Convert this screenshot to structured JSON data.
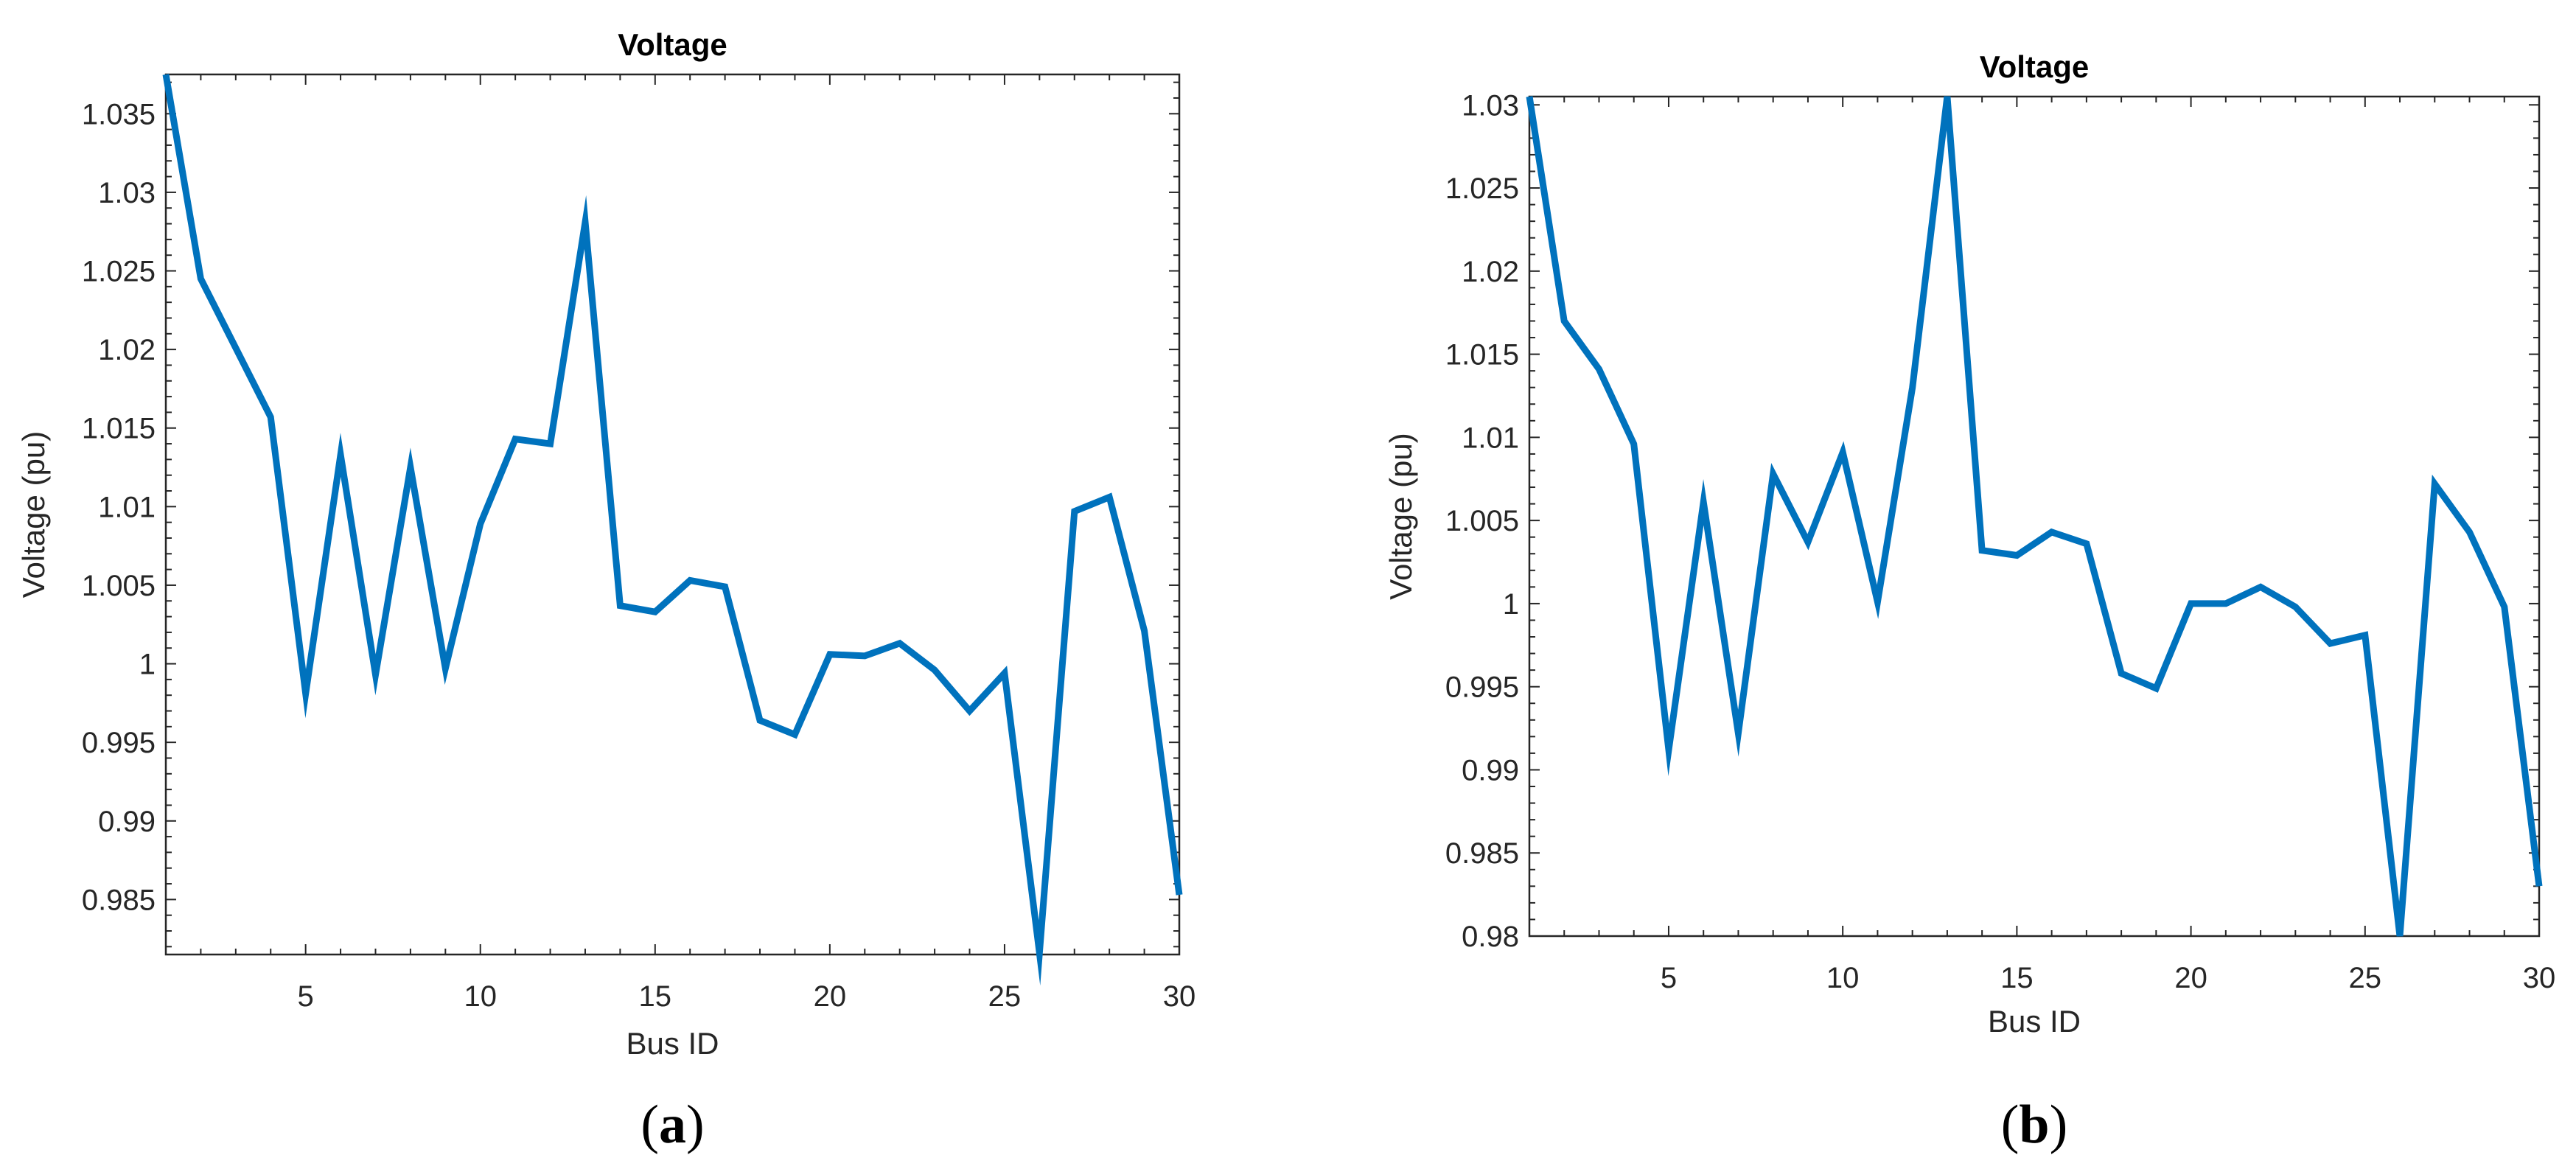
{
  "chart_data": [
    {
      "type": "line",
      "title": "Voltage",
      "xlabel": "Bus ID",
      "ylabel": "Voltage (pu)",
      "panel_label": "a",
      "xlim": [
        1,
        30
      ],
      "ylim": [
        0.9815,
        1.0375
      ],
      "xticks": [
        5,
        10,
        15,
        20,
        25,
        30
      ],
      "yticks": [
        0.985,
        0.99,
        0.995,
        1,
        1.005,
        1.01,
        1.015,
        1.02,
        1.025,
        1.03,
        1.035
      ],
      "ytick_labels": [
        "0.985",
        "0.99",
        "0.995",
        "1",
        "1.005",
        "1.01",
        "1.015",
        "1.02",
        "1.025",
        "1.03",
        "1.035"
      ],
      "grid": false,
      "color": "#0072BD",
      "series": [
        {
          "x": [
            1,
            2,
            3,
            4,
            5,
            6,
            7,
            8,
            9,
            10,
            11,
            12,
            13,
            14,
            15,
            16,
            17,
            18,
            19,
            20,
            21,
            22,
            23,
            24,
            25,
            26,
            27,
            28,
            29,
            30
          ],
          "values": [
            1.0375,
            1.0245,
            1.0201,
            1.0157,
            0.9981,
            1.0133,
            0.9993,
            1.0125,
            0.9997,
            1.0089,
            1.0143,
            1.014,
            1.0281,
            1.0037,
            1.0033,
            1.0053,
            1.0049,
            0.9964,
            0.9955,
            1.0006,
            1.0005,
            1.0013,
            0.9996,
            0.997,
            0.9994,
            0.9816,
            1.0097,
            1.0106,
            1.0021,
            0.9853
          ]
        }
      ]
    },
    {
      "type": "line",
      "title": "Voltage",
      "xlabel": "Bus ID",
      "ylabel": "Voltage (pu)",
      "panel_label": "b",
      "xlim": [
        1,
        30
      ],
      "ylim": [
        0.98,
        1.0305
      ],
      "xticks": [
        5,
        10,
        15,
        20,
        25,
        30
      ],
      "yticks": [
        0.98,
        0.985,
        0.99,
        0.995,
        1,
        1.005,
        1.01,
        1.015,
        1.02,
        1.025,
        1.03
      ],
      "ytick_labels": [
        "0.98",
        "0.985",
        "0.99",
        "0.995",
        "1",
        "1.005",
        "1.01",
        "1.015",
        "1.02",
        "1.025",
        "1.03"
      ],
      "grid": false,
      "color": "#0072BD",
      "series": [
        {
          "x": [
            1,
            2,
            3,
            4,
            5,
            6,
            7,
            8,
            9,
            10,
            11,
            12,
            13,
            14,
            15,
            16,
            17,
            18,
            19,
            20,
            21,
            22,
            23,
            24,
            25,
            26,
            27,
            28,
            29,
            30
          ],
          "values": [
            1.0305,
            1.017,
            1.0141,
            1.0096,
            0.9912,
            1.0061,
            0.9922,
            1.0078,
            1.0037,
            1.0091,
            1.0001,
            1.013,
            1.0305,
            1.0032,
            1.0029,
            1.0043,
            1.0036,
            0.9958,
            0.9949,
            1.0,
            1.0,
            1.001,
            0.9998,
            0.9976,
            0.9981,
            0.98,
            1.0072,
            1.0043,
            0.9998,
            0.983
          ]
        }
      ]
    }
  ]
}
